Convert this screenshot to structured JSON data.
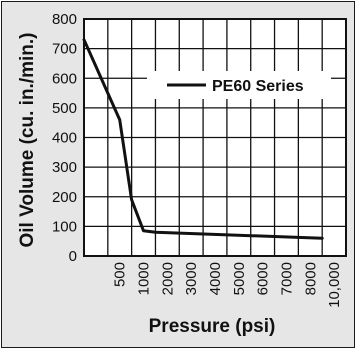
{
  "chart_data": {
    "type": "line",
    "xlabel": "Pressure (psi)",
    "ylabel": "Oil Volume (cu. in./min.)",
    "ylim": [
      0,
      800
    ],
    "y_ticks": [
      "0",
      "100",
      "200",
      "300",
      "400",
      "500",
      "600",
      "700",
      "800"
    ],
    "x_ticks": [
      "500",
      "1000",
      "2000",
      "3000",
      "4000",
      "5000",
      "6000",
      "7000",
      "8000",
      "10,000"
    ],
    "grid": true,
    "legend_position": "top-right",
    "series": [
      {
        "name": "PE60 Series",
        "color": "#111111",
        "points": [
          {
            "x": 0,
            "y": 730
          },
          {
            "x": 250,
            "y": 640
          },
          {
            "x": 500,
            "y": 550
          },
          {
            "x": 750,
            "y": 460
          },
          {
            "x": 1000,
            "y": 190
          },
          {
            "x": 1500,
            "y": 85
          },
          {
            "x": 2000,
            "y": 80
          },
          {
            "x": 10000,
            "y": 60
          }
        ]
      }
    ]
  }
}
